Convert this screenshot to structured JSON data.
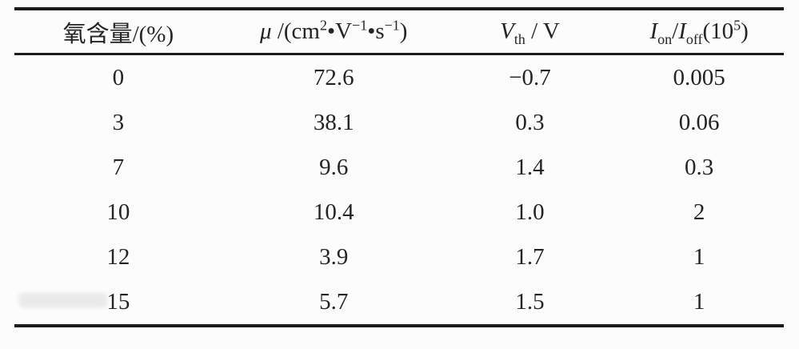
{
  "page": {
    "background_color": "#fcfcfc",
    "rule_color": "#1b1b1b",
    "text_color": "#242424"
  },
  "table": {
    "columns": [
      {
        "id": "oxygen-content",
        "plain_label": "氧含量/(%)",
        "label_parts": [
          {
            "t": "氧含量/(%)"
          }
        ]
      },
      {
        "id": "mobility",
        "plain_label": "μ /(cm2•V−1•s−1)",
        "label_parts": [
          {
            "t": "μ",
            "var": true
          },
          {
            "t": " /(cm"
          },
          {
            "t": "2",
            "sup": true
          },
          {
            "t": "•V"
          },
          {
            "t": "−1",
            "sup": true
          },
          {
            "t": "•s"
          },
          {
            "t": "−1",
            "sup": true
          },
          {
            "t": ")"
          }
        ]
      },
      {
        "id": "threshold-voltage",
        "plain_label": "Vth / V",
        "label_parts": [
          {
            "t": "V",
            "var": true
          },
          {
            "t": "th",
            "sub": true
          },
          {
            "t": " / V"
          }
        ]
      },
      {
        "id": "on-off-ratio",
        "plain_label": "Ion/Ioff(105)",
        "label_parts": [
          {
            "t": "I",
            "var": true
          },
          {
            "t": "on",
            "sub": true
          },
          {
            "t": "/"
          },
          {
            "t": "I",
            "var": true
          },
          {
            "t": "off",
            "sub": true
          },
          {
            "t": "(10"
          },
          {
            "t": "5",
            "sup": true
          },
          {
            "t": ")"
          }
        ]
      }
    ],
    "rows": [
      [
        "0",
        "72.6",
        "−0.7",
        "0.005"
      ],
      [
        "3",
        "38.1",
        "0.3",
        "0.06"
      ],
      [
        "7",
        "9.6",
        "1.4",
        "0.3"
      ],
      [
        "10",
        "10.4",
        "1.0",
        "2"
      ],
      [
        "12",
        "3.9",
        "1.7",
        "1"
      ],
      [
        "15",
        "5.7",
        "1.5",
        "1"
      ]
    ]
  },
  "chart_data": {
    "type": "table",
    "title": "",
    "columns": [
      "氧含量/(%)",
      "μ /(cm2•V−1•s−1)",
      "Vth / V",
      "Ion/Ioff(105)"
    ],
    "rows": [
      [
        0,
        72.6,
        -0.7,
        0.005
      ],
      [
        3,
        38.1,
        0.3,
        0.06
      ],
      [
        7,
        9.6,
        1.4,
        0.3
      ],
      [
        10,
        10.4,
        1.0,
        2
      ],
      [
        12,
        3.9,
        1.7,
        1
      ],
      [
        15,
        5.7,
        1.5,
        1
      ]
    ]
  }
}
